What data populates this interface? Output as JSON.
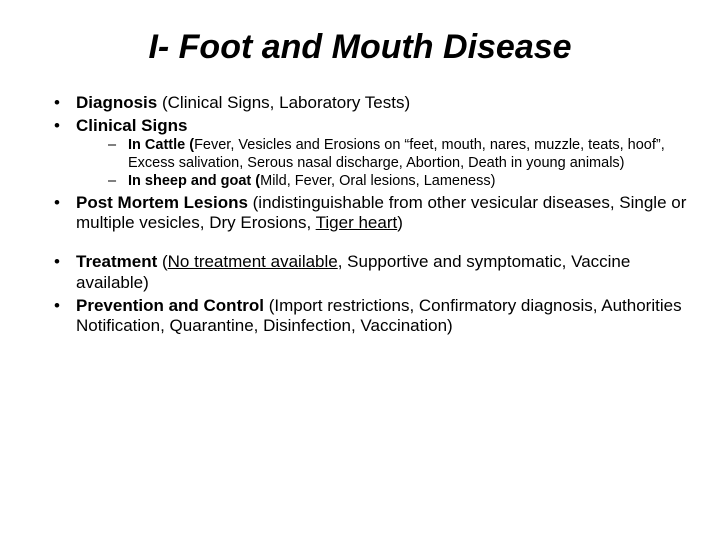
{
  "title": "I- Foot and Mouth Disease",
  "bullets": {
    "diagnosis_bold": "Diagnosis",
    "diagnosis_rest": " (Clinical Signs, Laboratory Tests)",
    "clinical_signs": "Clinical Signs",
    "cattle_bold": "In Cattle (",
    "cattle_rest": "Fever, Vesicles and Erosions on “feet, mouth, nares, muzzle, teats, hoof”, Excess salivation, Serous nasal discharge, Abortion, Death in young animals)",
    "sheep_bold": "In sheep and goat (",
    "sheep_rest": "Mild, Fever, Oral lesions, Lameness)",
    "pml_bold": "Post Mortem Lesions",
    "pml_rest1": " (indistinguishable from other vesicular diseases, Single or multiple vesicles, Dry Erosions, ",
    "pml_under": "Tiger heart",
    "pml_rest2": ")",
    "treat_bold": "Treatment",
    "treat_rest1": " (",
    "treat_under": "No treatment available",
    "treat_rest2": ", Supportive and symptomatic, Vaccine available)",
    "prev_bold": "Prevention and Control",
    "prev_rest": " (Import restrictions, Confirmatory diagnosis, Authorities Notification, Quarantine, Disinfection, Vaccination)"
  },
  "colors": {
    "background": "#ffffff",
    "text": "#000000"
  },
  "typography": {
    "title_fontsize": 34,
    "level1_fontsize": 17,
    "level2_fontsize": 14.5,
    "font_family": "Arial"
  }
}
